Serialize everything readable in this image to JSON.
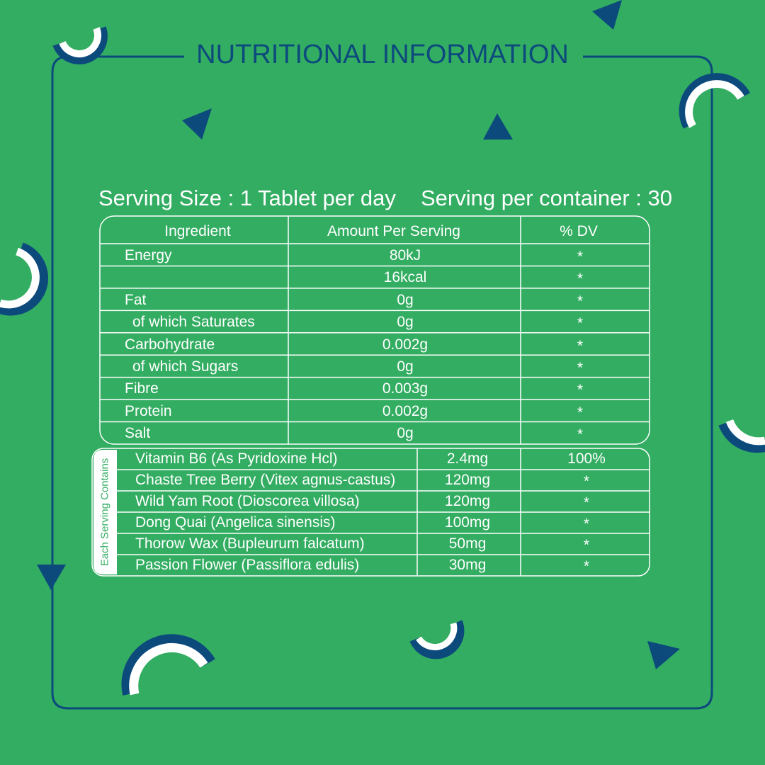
{
  "title": "NUTRITIONAL INFORMATION",
  "serving": {
    "size": "Serving Size : 1 Tablet per day",
    "per_container": "Serving per container : 30"
  },
  "table": {
    "header": [
      "Ingredient",
      "Amount Per Serving",
      "% DV"
    ],
    "rows": [
      [
        "Energy",
        "80kJ",
        "*"
      ],
      [
        null,
        "16kcal",
        "*"
      ],
      [
        "Fat",
        "0g",
        "*"
      ],
      [
        "of which Saturates",
        "0g",
        "*"
      ],
      [
        "Carbohydrate",
        "0.002g",
        "*"
      ],
      [
        "of which Sugars",
        "0g",
        "*"
      ],
      [
        "Fibre",
        "0.003g",
        "*"
      ],
      [
        "Protein",
        "0.002g",
        "*"
      ],
      [
        "Salt",
        "0g",
        "*"
      ]
    ]
  },
  "contents": {
    "label": "Each Serving Contains",
    "rows": [
      [
        "Vitamin B6 (As Pyridoxine Hcl)",
        "2.4mg",
        "100%"
      ],
      [
        "Chaste Tree Berry (Vitex agnus-castus)",
        "120mg",
        "*"
      ],
      [
        "Wild Yam Root (Dioscorea villosa)",
        "120mg",
        "*"
      ],
      [
        "Dong Quai (Angelica sinensis)",
        "100mg",
        "*"
      ],
      [
        "Thorow Wax (Bupleurum falcatum)",
        "50mg",
        "*"
      ],
      [
        "Passion Flower (Passiflora edulis)",
        "30mg",
        "*"
      ]
    ]
  }
}
